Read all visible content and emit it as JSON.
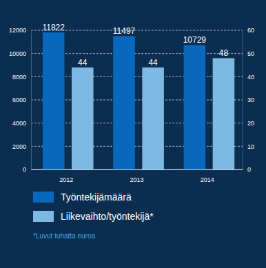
{
  "chart_data": {
    "type": "bar",
    "categories": [
      "2012",
      "2013",
      "2014"
    ],
    "series": [
      {
        "name": "Työntekijämäärä",
        "color": "#0868bd",
        "values": [
          11822,
          11497,
          10729
        ]
      },
      {
        "name": "Liikevaihto/työntekijä*",
        "color": "#7db9e2",
        "values": [
          44,
          44,
          48
        ],
        "axis": "y2"
      }
    ],
    "ylim": [
      0,
      12000
    ],
    "yticks": [
      0,
      2000,
      4000,
      6000,
      8000,
      10000,
      12000
    ],
    "y2lim": [
      0,
      60
    ],
    "y2ticks": [
      0,
      10,
      20,
      30,
      40,
      50,
      60
    ],
    "grid": true,
    "data_labels": true,
    "legend": "bottom",
    "annotations": [
      "*Luvut tuhatta euroa"
    ]
  }
}
